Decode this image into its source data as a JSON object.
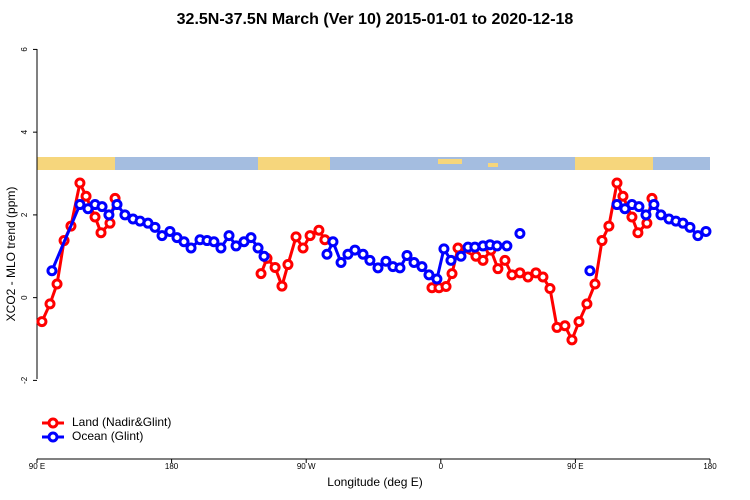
{
  "chart_data": {
    "type": "line",
    "title": "32.5N-37.5N March (Ver 10)   2015-01-01 to 2020-12-18",
    "x_label": "Longitude (deg E)",
    "y_label": "XCO2 - MLO trend (ppm)",
    "xlim": [
      90,
      540
    ],
    "ylim": [
      -3.9,
      6.3
    ],
    "xticks": [
      {
        "value": 90,
        "label": "90 E"
      },
      180,
      {
        "value": 270,
        "label": "90 W"
      },
      {
        "value": 360,
        "label": "0"
      },
      {
        "value": 450,
        "label": "90 E"
      },
      {
        "value": 540,
        "label": "180"
      }
    ],
    "yticks": [
      -2,
      0,
      2,
      4,
      6
    ],
    "legend": "bottom-left",
    "series": [
      {
        "name": "Land (Nadir&Glint)",
        "color": "#ff0000",
        "x": [
          93.3,
          98.7,
          103.4,
          108.1,
          112.7,
          118.7,
          122.8,
          128.8,
          132.8,
          138.8,
          142.2,
          null,
          239.8,
          243.8,
          249.2,
          253.8,
          257.8,
          263.2,
          267.9,
          272.6,
          278.5,
          282.5,
          null,
          354.1,
          358.8,
          363.5,
          367.5,
          371.5,
          383.5,
          388.2,
          393.5,
          398.2,
          402.9,
          407.6,
          412.9,
          418.3,
          423.6,
          428.3,
          433.0,
          437.7,
          443.0,
          447.7,
          452.4,
          457.7,
          463.1,
          467.8,
          472.4,
          477.8,
          481.8,
          487.8,
          491.8,
          497.8,
          501.2
        ],
        "values": [
          -0.58,
          -0.15,
          0.33,
          1.38,
          1.73,
          2.77,
          2.45,
          1.95,
          1.57,
          1.8,
          2.4,
          null,
          0.58,
          0.95,
          0.73,
          0.28,
          0.8,
          1.47,
          1.2,
          1.5,
          1.63,
          1.4,
          null,
          0.24,
          0.24,
          0.27,
          0.58,
          1.2,
          1.0,
          0.9,
          1.15,
          0.7,
          0.9,
          0.55,
          0.6,
          0.5,
          0.6,
          0.5,
          0.22,
          -0.72,
          -0.68,
          -1.02,
          -0.58,
          -0.15,
          0.33,
          1.38,
          1.73,
          2.77,
          2.45,
          1.95,
          1.57,
          1.8,
          2.4
        ]
      },
      {
        "name": "Ocean (Glint)",
        "color": "#0000ff",
        "x": [
          100.0,
          118.7,
          124.1,
          128.8,
          133.5,
          138.1,
          143.5,
          148.8,
          154.2,
          158.9,
          164.2,
          168.9,
          173.6,
          178.9,
          183.6,
          188.3,
          193.0,
          199.0,
          203.7,
          208.3,
          213.0,
          218.4,
          223.1,
          228.4,
          233.1,
          237.8,
          241.8,
          null,
          283.9,
          287.9,
          293.3,
          297.9,
          302.6,
          308.0,
          312.6,
          318.0,
          323.3,
          328.0,
          332.7,
          337.4,
          342.1,
          347.4,
          352.1,
          357.4,
          362.1,
          366.8,
          373.5,
          378.2,
          382.8,
          388.2,
          392.9,
          397.6,
          404.2,
          null,
          412.9,
          null,
          459.7,
          null,
          477.8,
          483.1,
          487.8,
          492.5,
          497.2,
          502.5,
          507.2,
          512.6,
          517.2,
          521.9,
          526.6,
          531.9,
          537.3
        ],
        "values": [
          0.65,
          2.25,
          2.15,
          2.25,
          2.2,
          2.0,
          2.25,
          2.0,
          1.9,
          1.85,
          1.8,
          1.7,
          1.5,
          1.6,
          1.45,
          1.35,
          1.2,
          1.4,
          1.38,
          1.35,
          1.2,
          1.5,
          1.25,
          1.35,
          1.45,
          1.2,
          1.0,
          null,
          1.05,
          1.35,
          0.85,
          1.05,
          1.15,
          1.05,
          0.9,
          0.72,
          0.88,
          0.75,
          0.72,
          1.02,
          0.85,
          0.75,
          0.55,
          0.45,
          1.18,
          0.9,
          1.0,
          1.22,
          1.22,
          1.25,
          1.28,
          1.25,
          1.25,
          null,
          1.55,
          null,
          0.65,
          null,
          2.25,
          2.15,
          2.25,
          2.2,
          2.0,
          2.25,
          2.0,
          1.9,
          1.85,
          1.8,
          1.7,
          1.5,
          1.6
        ]
      }
    ]
  }
}
